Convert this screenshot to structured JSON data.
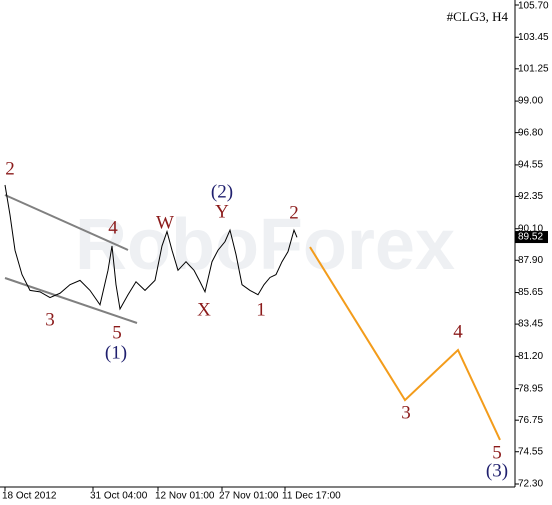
{
  "chart_data": {
    "type": "line",
    "title": "#CLG3, H4",
    "watermark": "RoboForex",
    "xlim": [
      0,
      513
    ],
    "ylim": [
      72.3,
      105.7
    ],
    "yticks": [
      {
        "value": 105.7,
        "label": "105.70"
      },
      103.45,
      101.25,
      {
        "value": 99,
        "label": "99.00"
      },
      {
        "value": 96.8,
        "label": "96.80"
      },
      94.55,
      92.35,
      {
        "value": 90.1,
        "label": "90.10"
      },
      {
        "value": 87.9,
        "label": "87.90"
      },
      85.65,
      83.45,
      {
        "value": 81.2,
        "label": "81.20"
      },
      78.95,
      76.75,
      74.55,
      {
        "value": 72.3,
        "label": "72.30"
      }
    ],
    "xticks": [
      {
        "value": 3,
        "label": "18 Oct 2012"
      },
      {
        "value": 91,
        "label": "31 Oct 04:00"
      },
      {
        "value": 156,
        "label": "12 Nov 01:00"
      },
      {
        "value": 220,
        "label": "27 Nov 01:00"
      },
      {
        "value": 283,
        "label": "11 Dec 17:00"
      }
    ],
    "last_price": 89.52,
    "series": [
      {
        "color": "#000000",
        "x": [
          3,
          8,
          13,
          20,
          28,
          38,
          48,
          58,
          68,
          78,
          88,
          98,
          106,
          110,
          114,
          118,
          126,
          134,
          143,
          153,
          160,
          165,
          170,
          176,
          184,
          192,
          198,
          203,
          210,
          216,
          223,
          228,
          234,
          240,
          248,
          256,
          262,
          268,
          274,
          280,
          286,
          292,
          295
        ],
        "values": [
          93.15,
          91.06,
          88.6,
          86.9,
          85.8,
          85.7,
          85.3,
          85.6,
          86.2,
          86.5,
          85.8,
          84.8,
          87.2,
          88.9,
          86.2,
          84.5,
          85.5,
          86.4,
          85.8,
          86.5,
          88.9,
          89.9,
          88.6,
          87.2,
          87.8,
          87.2,
          86.4,
          85.7,
          87.8,
          88.6,
          89.2,
          90.0,
          88.3,
          86.2,
          85.8,
          85.5,
          86.2,
          86.7,
          86.9,
          87.8,
          88.5,
          90.0,
          89.5
        ]
      },
      {
        "color": "#f39c1b",
        "x": [
          308,
          403,
          456,
          498
        ],
        "values": [
          88.82,
          78.15,
          81.64,
          75.37
        ]
      }
    ],
    "waves": [
      "2",
      "4",
      "3",
      "5",
      "(1)",
      "W",
      "(2)",
      "Y",
      "X",
      "1",
      "2",
      "3",
      "4",
      "5",
      "(3)"
    ]
  }
}
